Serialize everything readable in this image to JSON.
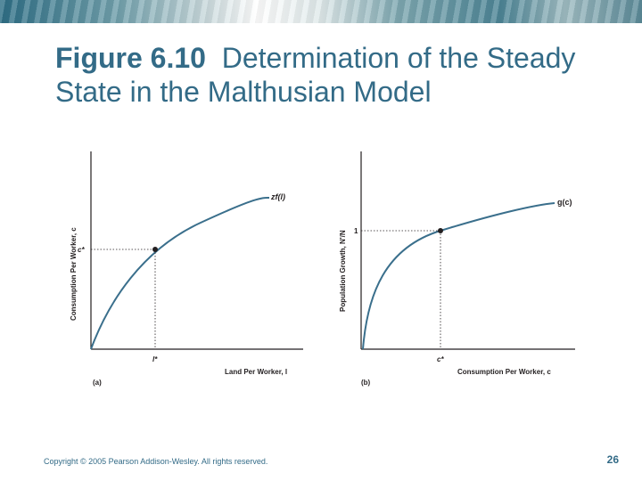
{
  "slide": {
    "title_bold": "Figure 6.10",
    "title_rest": "Determination of the Steady State in the Malthusian Model",
    "footer": "Copyright © 2005 Pearson Addison-Wesley. All rights reserved.",
    "page_number": "26"
  },
  "panel_a": {
    "tag": "(a)",
    "x_label": "Land Per Worker, l",
    "y_label": "Consumption Per Worker, c",
    "curve_label": "zf(l)",
    "x_star": "l*",
    "y_star": "c*"
  },
  "panel_b": {
    "tag": "(b)",
    "x_label": "Consumption Per Worker, c",
    "y_label": "Population Growth, N'/N",
    "curve_label": "g(c)",
    "x_star": "c*",
    "y_one": "1"
  },
  "colors": {
    "title": "#336b87",
    "curve": "#3a6f8c",
    "axis": "#231f20"
  }
}
